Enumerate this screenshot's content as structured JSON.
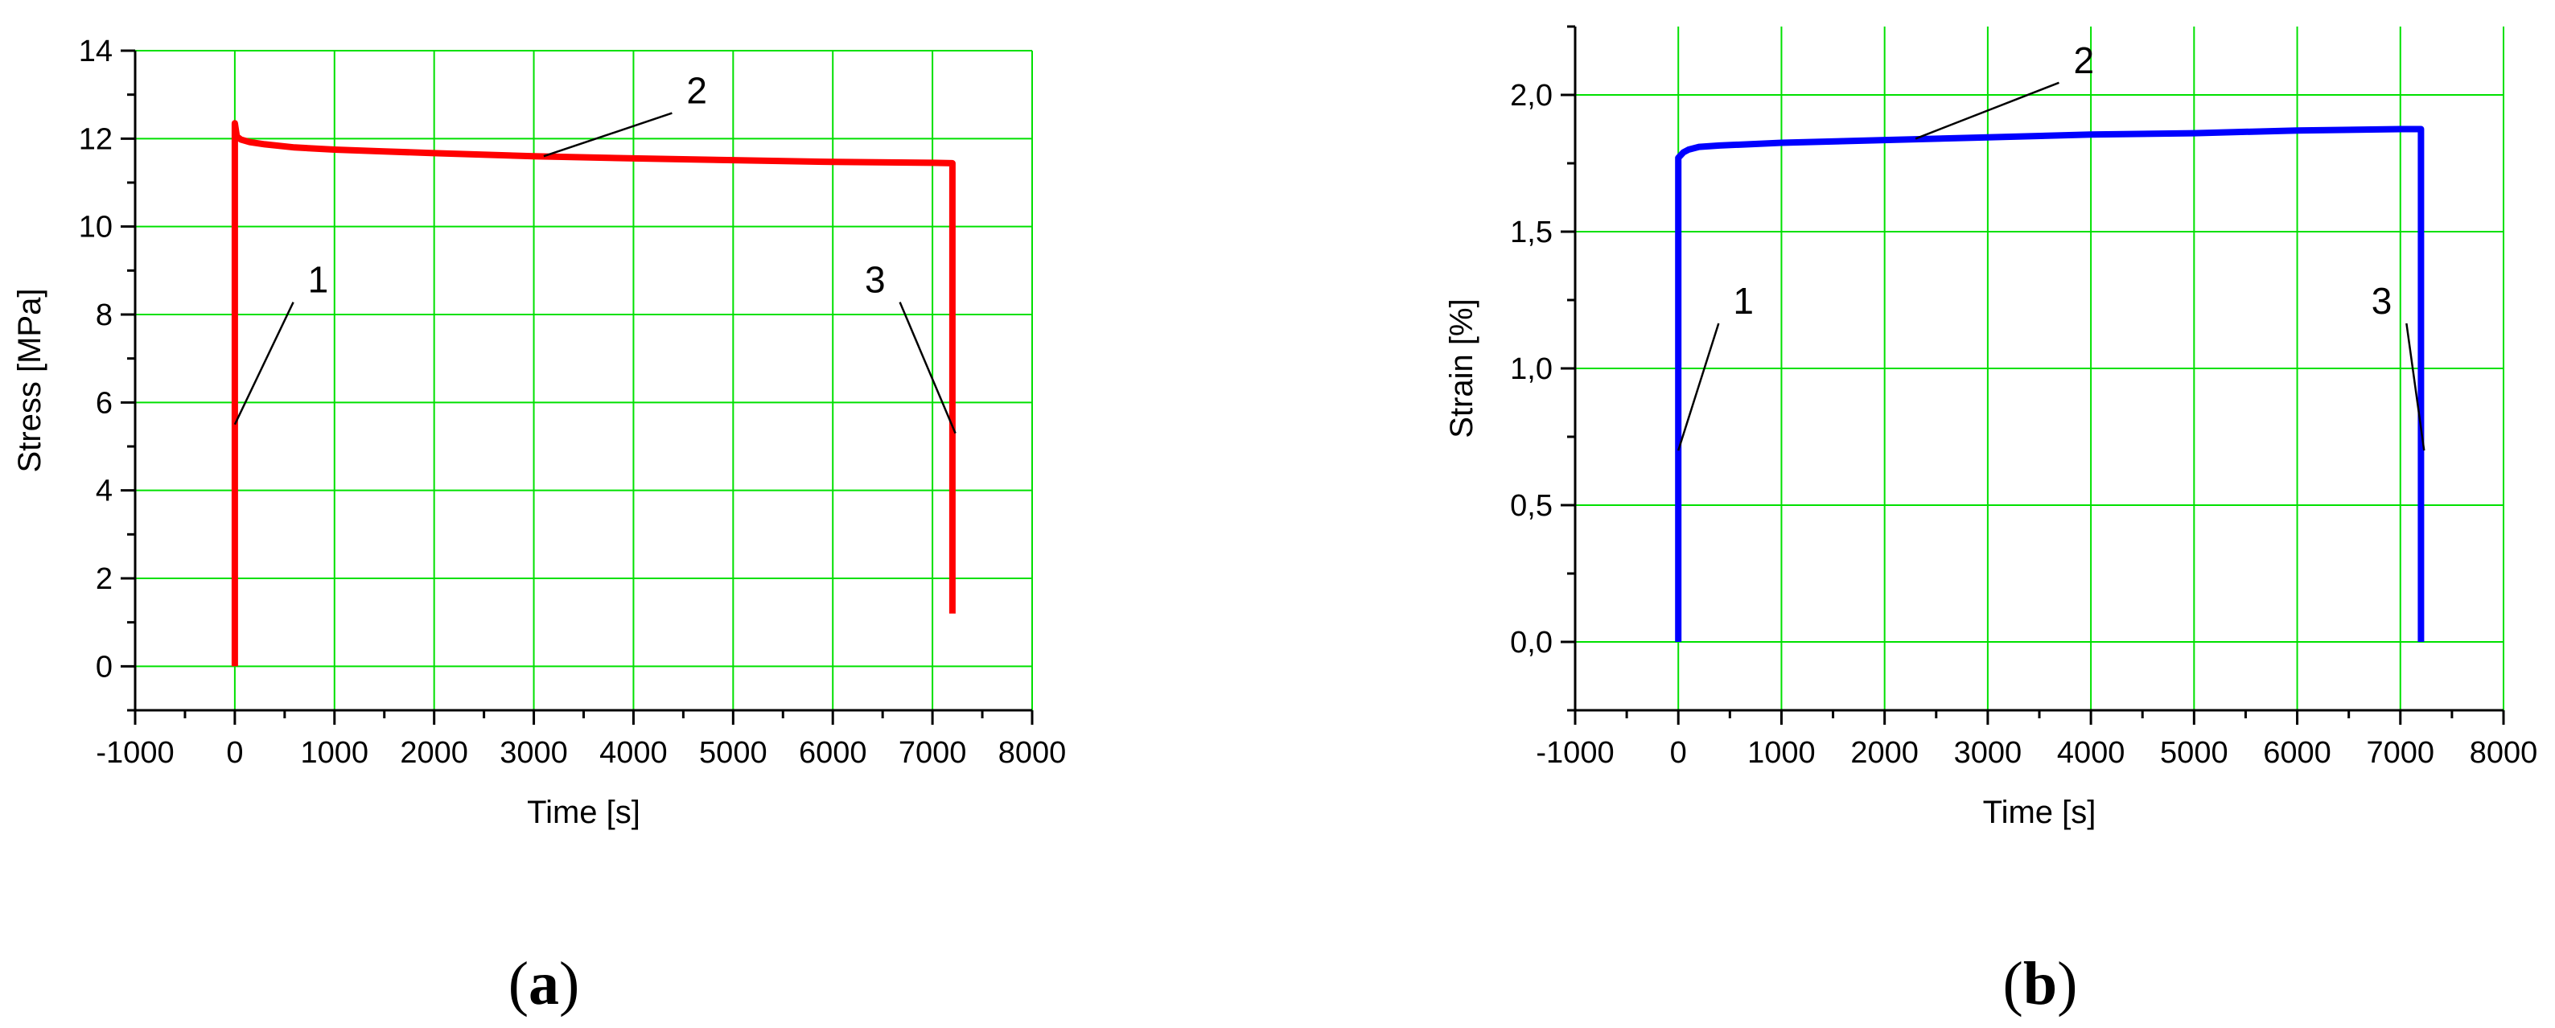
{
  "chart_data": [
    {
      "type": "line",
      "panel_label": "a",
      "xlabel": "Time [s]",
      "ylabel": "Stress [MPa]",
      "xlim": [
        -1000,
        8000
      ],
      "ylim": [
        -1,
        14
      ],
      "xticks": [
        -1000,
        0,
        1000,
        2000,
        3000,
        4000,
        5000,
        6000,
        7000,
        8000
      ],
      "xtick_labels": [
        "-1000",
        "0",
        "1000",
        "2000",
        "3000",
        "4000",
        "5000",
        "6000",
        "7000",
        "8000"
      ],
      "yticks": [
        0,
        2,
        4,
        6,
        8,
        10,
        12,
        14
      ],
      "ytick_labels": [
        "0",
        "2",
        "4",
        "6",
        "8",
        "10",
        "12",
        "14"
      ],
      "grid": true,
      "grid_color": "#00e000",
      "series": [
        {
          "color": "#ff0000",
          "x": [
            0,
            0,
            20,
            60,
            150,
            300,
            600,
            1000,
            1500,
            2000,
            3000,
            4000,
            5000,
            6000,
            7000,
            7200,
            7200
          ],
          "y": [
            0,
            12.35,
            12.05,
            11.98,
            11.92,
            11.87,
            11.8,
            11.75,
            11.71,
            11.67,
            11.6,
            11.55,
            11.51,
            11.47,
            11.45,
            11.44,
            1.2
          ]
        }
      ],
      "annotations": [
        {
          "text": "1",
          "x": 0,
          "y": 5.5,
          "label_x": 700,
          "label_y": 8.5
        },
        {
          "text": "2",
          "x": 3100,
          "y": 11.6,
          "label_x": 4500,
          "label_y": 12.8
        },
        {
          "text": "3",
          "x": 7230,
          "y": 5.3,
          "label_x": 6560,
          "label_y": 8.5
        }
      ]
    },
    {
      "type": "line",
      "panel_label": "b",
      "xlabel": "Time [s]",
      "ylabel": "Strain [%]",
      "xlim": [
        -1000,
        8000
      ],
      "ylim": [
        -0.25,
        2.25
      ],
      "xticks": [
        -1000,
        0,
        1000,
        2000,
        3000,
        4000,
        5000,
        6000,
        7000,
        8000
      ],
      "xtick_labels": [
        "-1000",
        "0",
        "1000",
        "2000",
        "3000",
        "4000",
        "5000",
        "6000",
        "7000",
        "8000"
      ],
      "yticks": [
        0,
        0.5,
        1,
        1.5,
        2
      ],
      "ytick_labels": [
        "0,0",
        "0,5",
        "1,0",
        "1,5",
        "2,0"
      ],
      "grid": true,
      "grid_color": "#00e000",
      "series": [
        {
          "color": "#0000ff",
          "x": [
            0,
            0,
            50,
            100,
            200,
            400,
            700,
            1000,
            2000,
            3000,
            4000,
            5000,
            6000,
            7000,
            7200,
            7200
          ],
          "y": [
            0,
            1.77,
            1.79,
            1.8,
            1.81,
            1.815,
            1.82,
            1.825,
            1.835,
            1.845,
            1.855,
            1.86,
            1.87,
            1.875,
            1.875,
            0
          ]
        }
      ],
      "annotations": [
        {
          "text": "1",
          "x": 0,
          "y": 0.7,
          "label_x": 500,
          "label_y": 1.2
        },
        {
          "text": "2",
          "x": 2300,
          "y": 1.84,
          "label_x": 3800,
          "label_y": 2.08
        },
        {
          "text": "3",
          "x": 7230,
          "y": 0.7,
          "label_x": 6950,
          "label_y": 1.2
        }
      ]
    }
  ]
}
